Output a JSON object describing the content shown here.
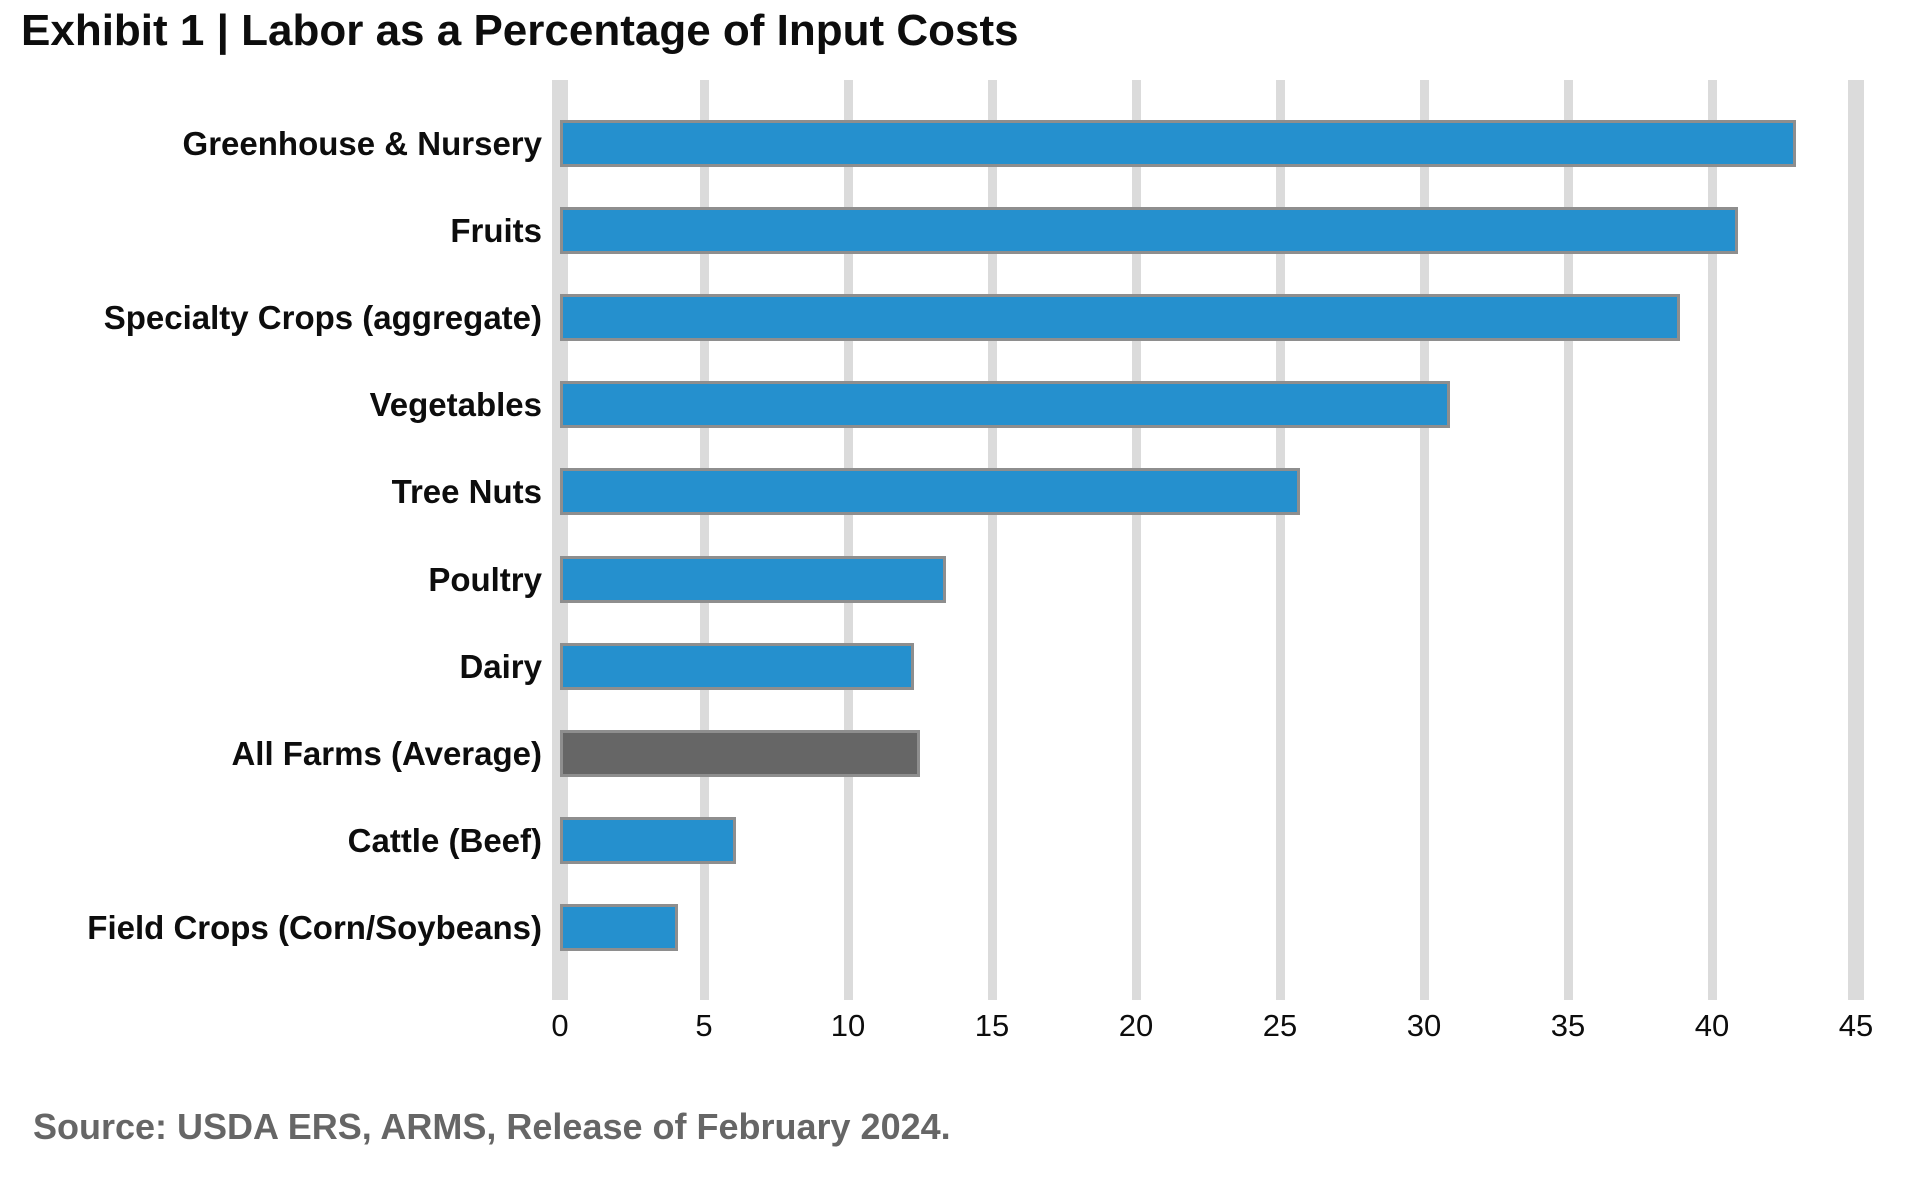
{
  "title": "Exhibit 1 | Labor as a Percentage of Input Costs",
  "source_note": "Source: USDA ERS, ARMS, Release of February 2024.",
  "colors": {
    "bar_blue": "#2590ce",
    "bar_gray": "#666666",
    "bar_border": "#8e8e8e",
    "gridline": "#dbdbdb",
    "text": "#0d0d0d",
    "source_text": "#666666"
  },
  "chart_data": {
    "type": "bar",
    "orientation": "horizontal",
    "title": "Exhibit 1 | Labor as a Percentage of Input Costs",
    "categories": [
      "Greenhouse & Nursery",
      "Fruits",
      "Specialty Crops (aggregate)",
      "Vegetables",
      "Tree Nuts",
      "Poultry",
      "Dairy",
      "All Farms (Average)",
      "Cattle (Beef)",
      "Field Crops (Corn/Soybeans)"
    ],
    "values": [
      42.9,
      40.9,
      38.9,
      30.9,
      25.7,
      13.4,
      12.3,
      12.5,
      6.1,
      4.1
    ],
    "bar_color_roles": [
      "blue",
      "blue",
      "blue",
      "blue",
      "blue",
      "blue",
      "blue",
      "gray",
      "blue",
      "blue"
    ],
    "highlight_category": "All Farms (Average)",
    "unit": "percent of input costs",
    "xlabel": "",
    "ylabel": "",
    "xlim": [
      0,
      45
    ],
    "xticks": [
      0,
      5,
      10,
      15,
      20,
      25,
      30,
      35,
      40,
      45
    ],
    "grid": "vertical",
    "legend": "none",
    "value_labels": "none"
  }
}
